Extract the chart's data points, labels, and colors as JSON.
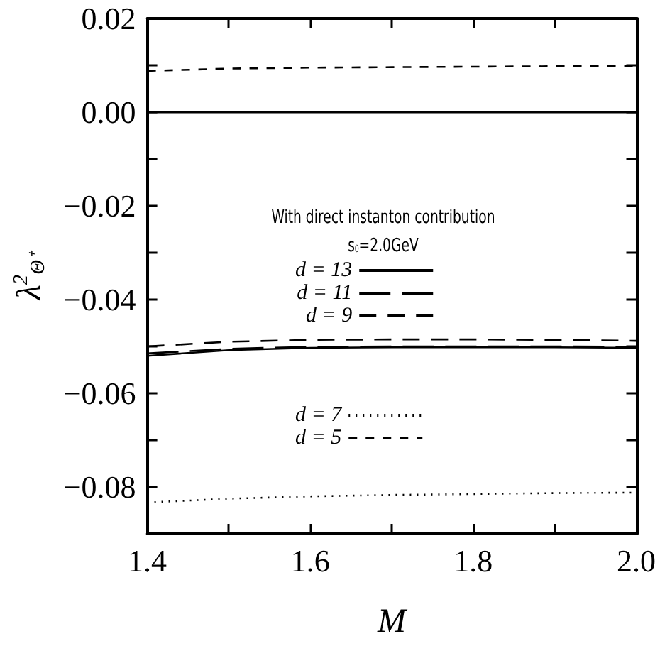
{
  "chart_data": {
    "type": "line",
    "xlabel": "M",
    "ylabel": "λ$^{2}$$_{Θ⁺}$",
    "annotations": [
      "With direct instanton contribution",
      "s$_{0}$=2.0GeV"
    ],
    "x": [
      1.4,
      1.5,
      1.6,
      1.7,
      1.8,
      1.9,
      2.0
    ],
    "series": [
      {
        "name": "d = 13",
        "color": "#000000",
        "line_style": "solid",
        "values": [
          -0.052,
          -0.0508,
          -0.0503,
          -0.0502,
          -0.0502,
          -0.0502,
          -0.0503
        ]
      },
      {
        "name": "d = 11",
        "color": "#000000",
        "line_style": "dashed",
        "values": [
          -0.0515,
          -0.0505,
          -0.0501,
          -0.05,
          -0.05,
          -0.05,
          -0.0501
        ]
      },
      {
        "name": "d = 9",
        "color": "#000000",
        "line_style": "dashed",
        "values": [
          -0.05,
          -0.049,
          -0.0486,
          -0.0485,
          -0.0485,
          -0.0486,
          -0.0488
        ]
      },
      {
        "name": "d = 7",
        "color": "#000000",
        "line_style": "dotted",
        "values": [
          -0.0833,
          -0.0825,
          -0.082,
          -0.0817,
          -0.0815,
          -0.0813,
          -0.0812
        ]
      },
      {
        "name": "d = 5",
        "color": "#000000",
        "line_style": "dashed",
        "values": [
          0.0088,
          0.0093,
          0.0095,
          0.0096,
          0.0097,
          0.0098,
          0.0098
        ]
      }
    ],
    "ref_lines": [
      {
        "axis": "y",
        "value": 0,
        "color": "#000000",
        "line_style": "solid"
      }
    ],
    "xlim": [
      1.4,
      2.0
    ],
    "xticks": [
      1.4,
      {
        "value": 1.5,
        "label": null
      },
      1.6,
      {
        "value": 1.7,
        "label": null
      },
      1.8,
      {
        "value": 1.9,
        "label": null
      },
      {
        "value": 2,
        "label": "2.0"
      }
    ],
    "ylim": [
      -0.09,
      0.02
    ],
    "yticks": [
      {
        "value": -0.08,
        "label": "−0.08"
      },
      {
        "value": -0.07,
        "label": null
      },
      {
        "value": -0.06,
        "label": "−0.06"
      },
      {
        "value": -0.05,
        "label": null
      },
      {
        "value": -0.04,
        "label": "−0.04"
      },
      {
        "value": -0.03,
        "label": null
      },
      {
        "value": -0.02,
        "label": "−0.02"
      },
      {
        "value": -0.01,
        "label": null
      },
      {
        "value": 0,
        "label": "0.00"
      },
      {
        "value": 0.01,
        "label": null
      },
      {
        "value": 0.02,
        "label": "0.02"
      }
    ],
    "grid": false,
    "legend": "center",
    "marker": "none"
  }
}
